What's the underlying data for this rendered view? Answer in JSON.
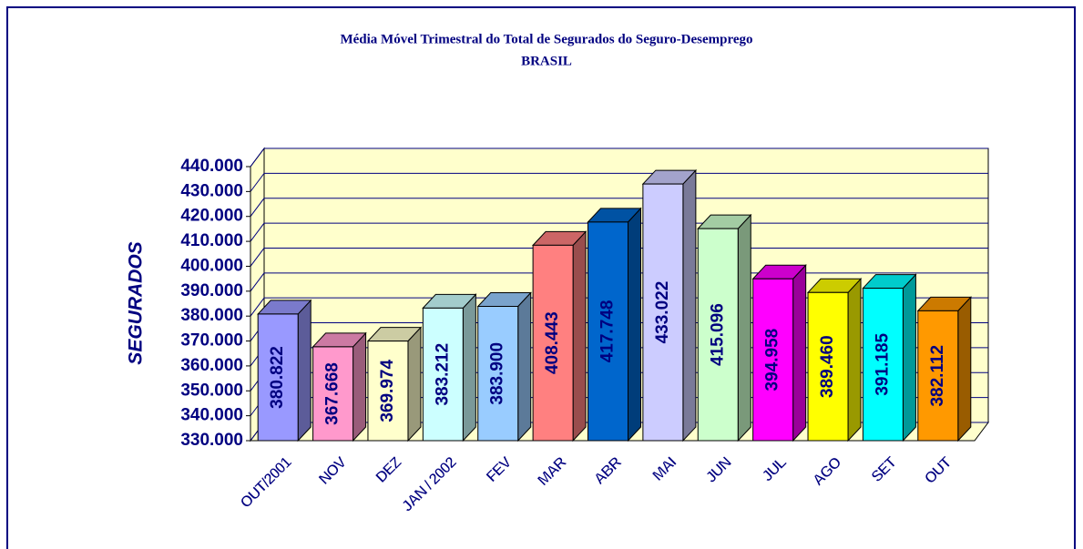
{
  "chart_data": {
    "type": "bar",
    "title": [
      "Média Móvel Trimestral do Total de Segurados do Seguro-Desemprego",
      "BRASIL"
    ],
    "y_label": "SEGURADOS",
    "categories": [
      "OUT/2001",
      "NOV",
      "DEZ",
      "JAN / 2002",
      "FEV",
      "MAR",
      "ABR",
      "MAI",
      "JUN",
      "JUL",
      "AGO",
      "SET",
      "OUT"
    ],
    "values": [
      380822,
      367668,
      369974,
      383212,
      383900,
      408443,
      417748,
      433022,
      415096,
      394958,
      389460,
      391185,
      382112
    ],
    "value_labels": [
      "380.822",
      "367.668",
      "369.974",
      "383.212",
      "383.900",
      "408.443",
      "417.748",
      "433.022",
      "415.096",
      "394.958",
      "389.460",
      "391.185",
      "382.112"
    ],
    "colors": [
      "#9999ff",
      "#ff99cc",
      "#ffffcc",
      "#ccffff",
      "#99ccff",
      "#ff8080",
      "#0066cc",
      "#ccccff",
      "#ccffcc",
      "#ff00ff",
      "#ffff00",
      "#00ffff",
      "#ff9900"
    ],
    "ylim": [
      330000,
      440000
    ],
    "yticks": [
      {
        "value": 330000,
        "label": "330.000"
      },
      {
        "value": 340000,
        "label": "340.000"
      },
      {
        "value": 350000,
        "label": "350.000"
      },
      {
        "value": 360000,
        "label": "360.000"
      },
      {
        "value": 370000,
        "label": "370.000"
      },
      {
        "value": 380000,
        "label": "380.000"
      },
      {
        "value": 390000,
        "label": "390.000"
      },
      {
        "value": 400000,
        "label": "400.000"
      },
      {
        "value": 410000,
        "label": "410.000"
      },
      {
        "value": 420000,
        "label": "420.000"
      },
      {
        "value": 430000,
        "label": "430.000"
      },
      {
        "value": 440000,
        "label": "440.000"
      }
    ],
    "grid": true
  }
}
